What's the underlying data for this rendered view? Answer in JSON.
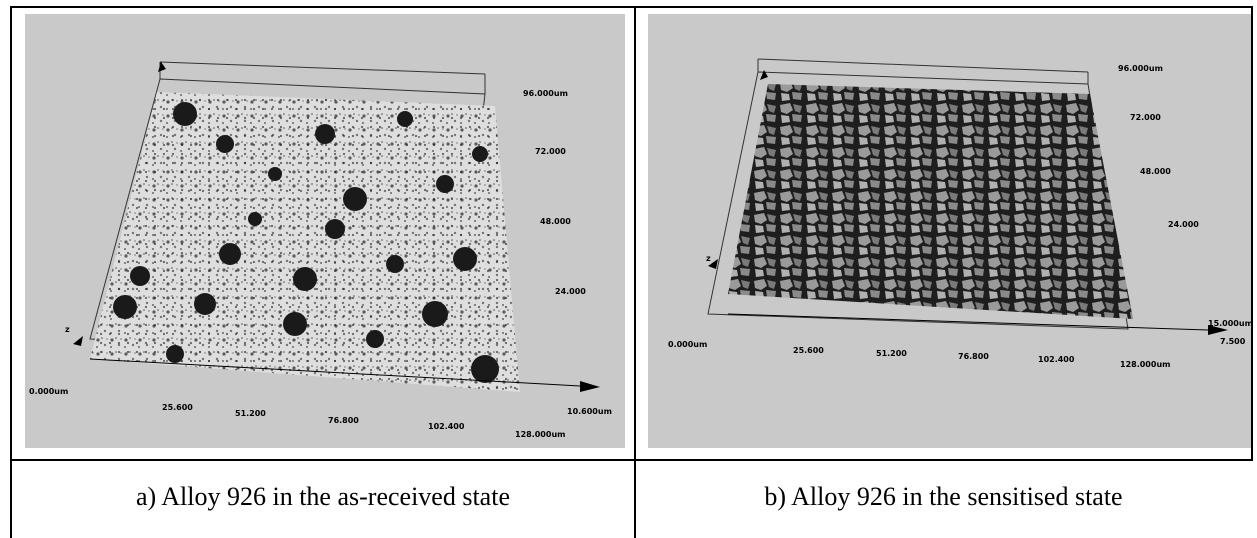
{
  "figure": {
    "panel_a": {
      "caption": "a) Alloy 926 in the as-received state",
      "axis_labels": {
        "origin": "0.000um",
        "x_ticks": [
          "25.600",
          "51.200",
          "76.800",
          "102.400",
          "128.000um"
        ],
        "y_ticks": [
          "24.000",
          "48.000",
          "72.000",
          "96.000um"
        ],
        "z_max": "10.600um",
        "z_axis": "z"
      }
    },
    "panel_b": {
      "caption": "b) Alloy 926 in the sensitised state",
      "axis_labels": {
        "origin": "0.000um",
        "x_ticks": [
          "25.600",
          "51.200",
          "76.800",
          "102.400",
          "128.000um"
        ],
        "y_ticks": [
          "24.000",
          "48.000",
          "72.000",
          "96.000um"
        ],
        "z_max": "15.000um",
        "z_extra": "7.500",
        "z_axis": "z"
      }
    }
  }
}
